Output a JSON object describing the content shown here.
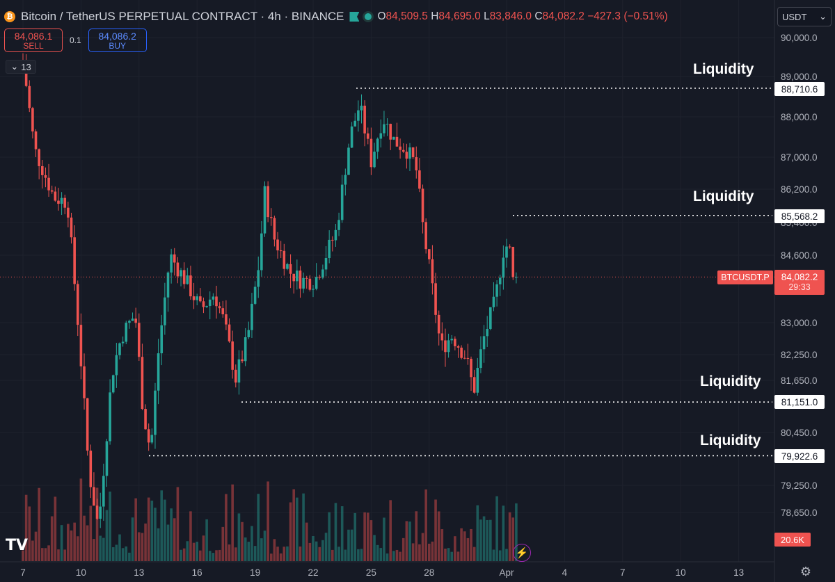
{
  "header": {
    "coin_symbol": "₿",
    "title": "Bitcoin / TetherUS PERPETUAL CONTRACT · 4h · BINANCE",
    "ohlc": [
      {
        "k": "O",
        "v": "84,509.5"
      },
      {
        "k": "H",
        "v": "84,695.0"
      },
      {
        "k": "L",
        "v": "83,846.0"
      },
      {
        "k": "C",
        "v": "84,082.2"
      }
    ],
    "change": "−427.3 (−0.51%)"
  },
  "trade": {
    "sell_price": "84,086.1",
    "sell_label": "SELL",
    "spread": "0.1",
    "buy_price": "84,086.2",
    "buy_label": "BUY"
  },
  "indicator_count": "13",
  "currency": "USDT",
  "price_axis": [
    "90,000.0",
    "89,000.0",
    "88,000.0",
    "87,000.0",
    "86,200.0",
    "85,400.0",
    "84,600.0",
    "83,000.0",
    "82,250.0",
    "81,650.0",
    "80,450.0",
    "79,250.0",
    "78,650.0"
  ],
  "time_axis": [
    {
      "label": "7",
      "d": 7
    },
    {
      "label": "10",
      "d": 10
    },
    {
      "label": "13",
      "d": 13
    },
    {
      "label": "16",
      "d": 16
    },
    {
      "label": "19",
      "d": 19
    },
    {
      "label": "22",
      "d": 22
    },
    {
      "label": "25",
      "d": 25
    },
    {
      "label": "28",
      "d": 28
    },
    {
      "label": "Apr",
      "d": 32
    },
    {
      "label": "4",
      "d": 35
    },
    {
      "label": "7",
      "d": 38
    },
    {
      "label": "10",
      "d": 41
    },
    {
      "label": "13",
      "d": 44
    }
  ],
  "annotations": [
    {
      "label": "Liquidity",
      "price_tag": "88,710.6",
      "price": 88710.6
    },
    {
      "label": "Liquidity",
      "price_tag": "85,568.2",
      "price": 85568.2
    },
    {
      "label": "Liquidity",
      "price_tag": "81,151.0",
      "price": 81151.0
    },
    {
      "label": "Liquidity",
      "price_tag": "79,922.6",
      "price": 79922.6
    }
  ],
  "current": {
    "symbol": "BTCUSDT.P",
    "price": "84,082.2",
    "countdown": "29:33"
  },
  "volume": {
    "last": "20.6K"
  },
  "colors": {
    "up": "#26a69a",
    "down": "#ef5350",
    "background": "#161a25",
    "grid": "#1e222d",
    "text": "#b2b5be"
  },
  "icons": [
    "bitcoin-coin-icon",
    "flag-icon",
    "status-dot-icon",
    "chevron-down-icon",
    "tradingview-logo-icon",
    "lightning-icon",
    "settings-gear-icon"
  ],
  "chart_data": {
    "type": "candlestick",
    "interval": "4h",
    "symbol": "BTCUSDT.P",
    "ylim": [
      78000,
      90400
    ],
    "last_close": 84082.2,
    "key_points": [
      {
        "d": 7.0,
        "price": 89400
      },
      {
        "d": 7.6,
        "price": 87200
      },
      {
        "d": 8.6,
        "price": 86000
      },
      {
        "d": 9.3,
        "price": 85900
      },
      {
        "d": 9.9,
        "price": 82700
      },
      {
        "d": 10.4,
        "price": 79600
      },
      {
        "d": 10.9,
        "price": 78300
      },
      {
        "d": 11.6,
        "price": 81800
      },
      {
        "d": 12.1,
        "price": 82700
      },
      {
        "d": 12.8,
        "price": 83200
      },
      {
        "d": 13.2,
        "price": 81000
      },
      {
        "d": 13.6,
        "price": 80000
      },
      {
        "d": 14.0,
        "price": 82300
      },
      {
        "d": 14.6,
        "price": 84600
      },
      {
        "d": 15.4,
        "price": 84000
      },
      {
        "d": 16.2,
        "price": 83300
      },
      {
        "d": 16.9,
        "price": 83700
      },
      {
        "d": 17.4,
        "price": 83000
      },
      {
        "d": 18.0,
        "price": 81700
      },
      {
        "d": 18.6,
        "price": 82600
      },
      {
        "d": 19.2,
        "price": 84400
      },
      {
        "d": 19.5,
        "price": 86100
      },
      {
        "d": 20.0,
        "price": 85000
      },
      {
        "d": 20.8,
        "price": 84200
      },
      {
        "d": 21.4,
        "price": 84000
      },
      {
        "d": 22.1,
        "price": 84000
      },
      {
        "d": 23.2,
        "price": 85200
      },
      {
        "d": 23.9,
        "price": 87500
      },
      {
        "d": 24.4,
        "price": 88300
      },
      {
        "d": 25.0,
        "price": 86900
      },
      {
        "d": 25.6,
        "price": 88000
      },
      {
        "d": 26.2,
        "price": 87400
      },
      {
        "d": 26.8,
        "price": 87200
      },
      {
        "d": 27.3,
        "price": 86800
      },
      {
        "d": 27.7,
        "price": 85200
      },
      {
        "d": 28.1,
        "price": 84000
      },
      {
        "d": 28.6,
        "price": 82400
      },
      {
        "d": 29.2,
        "price": 82700
      },
      {
        "d": 29.9,
        "price": 82200
      },
      {
        "d": 30.3,
        "price": 81400
      },
      {
        "d": 30.8,
        "price": 82600
      },
      {
        "d": 31.4,
        "price": 83500
      },
      {
        "d": 31.9,
        "price": 84900
      },
      {
        "d": 32.3,
        "price": 84600
      },
      {
        "d": 32.5,
        "price": 84082
      }
    ]
  }
}
